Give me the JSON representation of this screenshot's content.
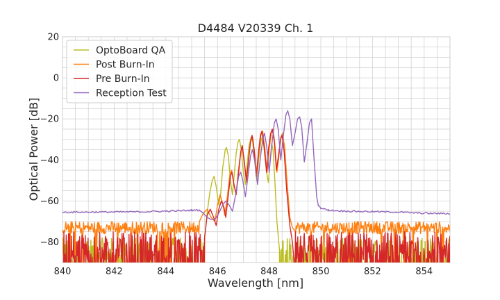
{
  "chart_data": {
    "type": "line",
    "title": "D4484 V20339 Ch. 1",
    "xlabel": "Wavelength [nm]",
    "ylabel": "Optical Power [dB]",
    "xlim": [
      840,
      855
    ],
    "ylim": [
      -90,
      20
    ],
    "xticks": [
      840,
      842,
      844,
      846,
      848,
      850,
      852,
      854
    ],
    "xtick_labels": [
      "840",
      "842",
      "844",
      "846",
      "848",
      "850",
      "852",
      "854"
    ],
    "yticks": [
      20,
      0,
      -20,
      -40,
      -60,
      -80
    ],
    "ytick_labels": [
      "20",
      "0",
      "−20",
      "−40",
      "−60",
      "−80"
    ],
    "x_minor_step": 0.5,
    "y_minor_step": 5,
    "grid": true,
    "legend_position": "top-left",
    "series": [
      {
        "name": "OptoBoard QA",
        "color": "#bcbd22",
        "noise_floor": -84,
        "noise_from": 840,
        "noise_to": 845.5,
        "noise_from2": 848.4,
        "noise_to2": 855,
        "points": [
          [
            845.5,
            -78
          ],
          [
            845.6,
            -66
          ],
          [
            845.7,
            -56
          ],
          [
            845.8,
            -50
          ],
          [
            845.87,
            -48
          ],
          [
            845.95,
            -53
          ],
          [
            846.05,
            -62
          ],
          [
            846.12,
            -57
          ],
          [
            846.2,
            -44
          ],
          [
            846.3,
            -35
          ],
          [
            846.35,
            -34
          ],
          [
            846.42,
            -38
          ],
          [
            846.5,
            -50
          ],
          [
            846.58,
            -57
          ],
          [
            846.65,
            -47
          ],
          [
            846.72,
            -37
          ],
          [
            846.8,
            -31
          ],
          [
            846.85,
            -30
          ],
          [
            846.92,
            -35
          ],
          [
            847.0,
            -46
          ],
          [
            847.08,
            -52
          ],
          [
            847.15,
            -42
          ],
          [
            847.22,
            -33
          ],
          [
            847.3,
            -29
          ],
          [
            847.36,
            -31
          ],
          [
            847.45,
            -42
          ],
          [
            847.52,
            -50
          ],
          [
            847.6,
            -39
          ],
          [
            847.68,
            -31
          ],
          [
            847.73,
            -29
          ],
          [
            847.8,
            -34
          ],
          [
            847.9,
            -46
          ],
          [
            847.97,
            -51
          ],
          [
            848.05,
            -38
          ],
          [
            848.1,
            -32
          ],
          [
            848.15,
            -35
          ],
          [
            848.22,
            -50
          ],
          [
            848.3,
            -70
          ],
          [
            848.4,
            -84
          ]
        ]
      },
      {
        "name": "Post Burn-In",
        "color": "#ff7f0e",
        "noise_floor": -73,
        "noise_from": 840,
        "noise_to": 845.3,
        "noise_from2": 849.0,
        "noise_to2": 855,
        "points": [
          [
            845.3,
            -70
          ],
          [
            845.45,
            -66
          ],
          [
            845.6,
            -64
          ],
          [
            845.75,
            -68
          ],
          [
            845.9,
            -70
          ],
          [
            846.0,
            -62
          ],
          [
            846.1,
            -57
          ],
          [
            846.2,
            -61
          ],
          [
            846.28,
            -67
          ],
          [
            846.38,
            -58
          ],
          [
            846.48,
            -47
          ],
          [
            846.55,
            -45
          ],
          [
            846.62,
            -51
          ],
          [
            846.72,
            -57
          ],
          [
            846.8,
            -46
          ],
          [
            846.9,
            -36
          ],
          [
            846.96,
            -34
          ],
          [
            847.05,
            -43
          ],
          [
            847.12,
            -51
          ],
          [
            847.2,
            -41
          ],
          [
            847.28,
            -31
          ],
          [
            847.36,
            -29
          ],
          [
            847.44,
            -37
          ],
          [
            847.52,
            -48
          ],
          [
            847.6,
            -37
          ],
          [
            847.68,
            -28
          ],
          [
            847.75,
            -26
          ],
          [
            847.83,
            -34
          ],
          [
            847.92,
            -46
          ],
          [
            848.0,
            -35
          ],
          [
            848.08,
            -27
          ],
          [
            848.15,
            -25
          ],
          [
            848.22,
            -32
          ],
          [
            848.3,
            -46
          ],
          [
            848.38,
            -38
          ],
          [
            848.45,
            -29
          ],
          [
            848.52,
            -27
          ],
          [
            848.6,
            -34
          ],
          [
            848.7,
            -52
          ],
          [
            848.8,
            -68
          ],
          [
            848.9,
            -73
          ]
        ]
      },
      {
        "name": "Pre Burn-In",
        "color": "#d62728",
        "noise_floor": -82,
        "noise_from": 840,
        "noise_to": 845.5,
        "noise_from2": 849.0,
        "noise_to2": 855,
        "points": [
          [
            845.5,
            -78
          ],
          [
            845.6,
            -67
          ],
          [
            845.72,
            -64
          ],
          [
            845.85,
            -68
          ],
          [
            845.95,
            -72
          ],
          [
            846.05,
            -64
          ],
          [
            846.15,
            -60
          ],
          [
            846.25,
            -63
          ],
          [
            846.32,
            -68
          ],
          [
            846.42,
            -57
          ],
          [
            846.5,
            -48
          ],
          [
            846.56,
            -46
          ],
          [
            846.64,
            -52
          ],
          [
            846.72,
            -57
          ],
          [
            846.82,
            -46
          ],
          [
            846.9,
            -36
          ],
          [
            846.96,
            -33
          ],
          [
            847.04,
            -41
          ],
          [
            847.12,
            -50
          ],
          [
            847.2,
            -40
          ],
          [
            847.28,
            -31
          ],
          [
            847.34,
            -28
          ],
          [
            847.42,
            -35
          ],
          [
            847.5,
            -48
          ],
          [
            847.58,
            -37
          ],
          [
            847.66,
            -28
          ],
          [
            847.72,
            -26
          ],
          [
            847.8,
            -33
          ],
          [
            847.9,
            -46
          ],
          [
            847.98,
            -34
          ],
          [
            848.06,
            -27
          ],
          [
            848.12,
            -25
          ],
          [
            848.2,
            -31
          ],
          [
            848.28,
            -45
          ],
          [
            848.36,
            -38
          ],
          [
            848.44,
            -30
          ],
          [
            848.5,
            -28
          ],
          [
            848.58,
            -36
          ],
          [
            848.68,
            -55
          ],
          [
            848.8,
            -72
          ],
          [
            848.9,
            -80
          ]
        ]
      },
      {
        "name": "Reception Test",
        "color": "#9467bd",
        "base_points": [
          [
            840,
            -65.5
          ],
          [
            841,
            -65.5
          ],
          [
            842,
            -65.4
          ],
          [
            843,
            -65.3
          ],
          [
            844,
            -65.0
          ],
          [
            844.5,
            -64.8
          ],
          [
            845,
            -64.5
          ],
          [
            845.3,
            -64.5
          ]
        ],
        "base_points2": [
          [
            849.9,
            -62
          ],
          [
            850.0,
            -63.5
          ],
          [
            850.3,
            -64.5
          ],
          [
            851,
            -65
          ],
          [
            852,
            -65.2
          ],
          [
            853,
            -65.5
          ],
          [
            854,
            -66
          ],
          [
            855,
            -66.2
          ]
        ],
        "points": [
          [
            845.3,
            -64.5
          ],
          [
            845.45,
            -66
          ],
          [
            845.6,
            -68
          ],
          [
            845.75,
            -69
          ],
          [
            845.9,
            -69
          ],
          [
            846.05,
            -66
          ],
          [
            846.2,
            -62
          ],
          [
            846.32,
            -60
          ],
          [
            846.45,
            -62
          ],
          [
            846.58,
            -65
          ],
          [
            846.7,
            -57
          ],
          [
            846.82,
            -48
          ],
          [
            846.9,
            -46
          ],
          [
            846.98,
            -50
          ],
          [
            847.08,
            -58
          ],
          [
            847.18,
            -48
          ],
          [
            847.28,
            -38
          ],
          [
            847.35,
            -35
          ],
          [
            847.45,
            -41
          ],
          [
            847.55,
            -52
          ],
          [
            847.65,
            -40
          ],
          [
            847.75,
            -30
          ],
          [
            847.82,
            -27
          ],
          [
            847.9,
            -33
          ],
          [
            848.0,
            -46
          ],
          [
            848.1,
            -33
          ],
          [
            848.2,
            -22
          ],
          [
            848.27,
            -20
          ],
          [
            848.35,
            -25
          ],
          [
            848.45,
            -40
          ],
          [
            848.55,
            -28
          ],
          [
            848.65,
            -18
          ],
          [
            848.72,
            -16
          ],
          [
            848.8,
            -20
          ],
          [
            848.9,
            -33
          ],
          [
            849.0,
            -27
          ],
          [
            849.1,
            -20
          ],
          [
            849.18,
            -19
          ],
          [
            849.26,
            -24
          ],
          [
            849.36,
            -41
          ],
          [
            849.46,
            -32
          ],
          [
            849.56,
            -22
          ],
          [
            849.64,
            -20
          ],
          [
            849.74,
            -40
          ],
          [
            849.84,
            -58
          ],
          [
            849.9,
            -62
          ]
        ]
      }
    ]
  }
}
